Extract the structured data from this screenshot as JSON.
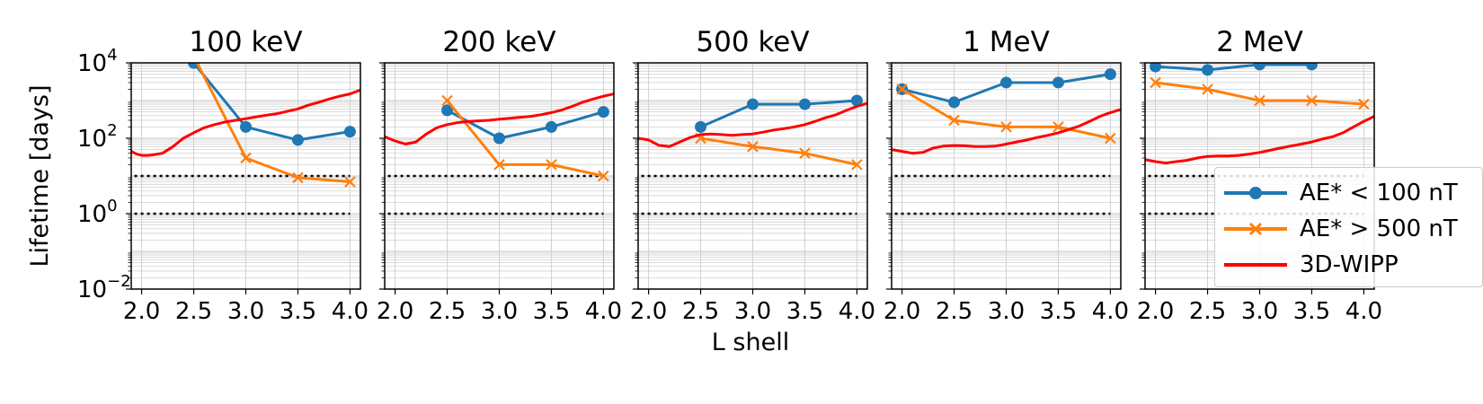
{
  "chart_data": {
    "type": "line",
    "shared_xlabel": "L shell",
    "shared_ylabel": "Lifetime [days]",
    "x_ticks": [
      "2.0",
      "2.5",
      "3.0",
      "3.5",
      "4.0"
    ],
    "xlim": [
      1.9,
      4.1
    ],
    "y_scale": "log",
    "ylim": [
      0.01,
      10000
    ],
    "y_ticks": [
      {
        "value": 0.01,
        "base": "10",
        "exp": "−2"
      },
      {
        "value": 1,
        "base": "10",
        "exp": "0"
      },
      {
        "value": 100,
        "base": "10",
        "exp": "2"
      },
      {
        "value": 10000,
        "base": "10",
        "exp": "4"
      }
    ],
    "grid": true,
    "reference_lines": [
      1,
      10
    ],
    "legend_position": "right, overlapping last panel",
    "series_styles": [
      {
        "name": "AE* < 100 nT",
        "color": "#1f77b4",
        "marker": "circle"
      },
      {
        "name": "AE* > 500 nT",
        "color": "#ff7f0e",
        "marker": "x"
      },
      {
        "name": "3D-WIPP",
        "color": "#ff0000",
        "marker": "none"
      }
    ],
    "panels": [
      {
        "title": "100 keV",
        "series": [
          {
            "name": "AE* < 100 nT",
            "x": [
              2.5,
              3.0,
              3.5,
              4.0
            ],
            "y": [
              10000,
              200,
              90,
              150
            ]
          },
          {
            "name": "AE* > 500 nT",
            "x": [
              2.5,
              3.0,
              3.5,
              4.0
            ],
            "y": [
              15000,
              30,
              9,
              7
            ]
          },
          {
            "name": "3D-WIPP",
            "x": [
              1.9,
              1.95,
              2.0,
              2.05,
              2.1,
              2.2,
              2.3,
              2.4,
              2.5,
              2.6,
              2.7,
              2.8,
              2.9,
              3.0,
              3.1,
              3.2,
              3.3,
              3.4,
              3.5,
              3.6,
              3.7,
              3.8,
              3.9,
              4.0,
              4.1
            ],
            "y": [
              45,
              38,
              35,
              35,
              36,
              40,
              60,
              100,
              140,
              190,
              230,
              270,
              300,
              330,
              370,
              410,
              450,
              520,
              600,
              750,
              900,
              1100,
              1300,
              1500,
              1900
            ]
          }
        ]
      },
      {
        "title": "200 keV",
        "series": [
          {
            "name": "AE* < 100 nT",
            "x": [
              2.5,
              3.0,
              3.5,
              4.0
            ],
            "y": [
              550,
              100,
              200,
              500
            ]
          },
          {
            "name": "AE* > 500 nT",
            "x": [
              2.5,
              3.0,
              3.5,
              4.0
            ],
            "y": [
              1000,
              20,
              20,
              10
            ]
          },
          {
            "name": "3D-WIPP",
            "x": [
              1.9,
              2.0,
              2.1,
              2.2,
              2.3,
              2.4,
              2.5,
              2.6,
              2.7,
              2.8,
              2.9,
              3.0,
              3.1,
              3.2,
              3.3,
              3.4,
              3.5,
              3.6,
              3.7,
              3.8,
              3.9,
              4.0,
              4.1
            ],
            "y": [
              110,
              85,
              70,
              80,
              130,
              190,
              230,
              260,
              280,
              290,
              300,
              320,
              340,
              360,
              380,
              420,
              480,
              560,
              700,
              900,
              1100,
              1300,
              1500
            ]
          }
        ]
      },
      {
        "title": "500 keV",
        "series": [
          {
            "name": "AE* < 100 nT",
            "x": [
              2.5,
              3.0,
              3.5,
              4.0
            ],
            "y": [
              200,
              800,
              800,
              1000
            ]
          },
          {
            "name": "AE* > 500 nT",
            "x": [
              2.5,
              3.0,
              3.5,
              4.0
            ],
            "y": [
              100,
              60,
              40,
              20
            ]
          },
          {
            "name": "3D-WIPP",
            "x": [
              1.9,
              2.0,
              2.1,
              2.2,
              2.3,
              2.4,
              2.5,
              2.6,
              2.7,
              2.8,
              2.9,
              3.0,
              3.1,
              3.2,
              3.3,
              3.4,
              3.5,
              3.6,
              3.7,
              3.8,
              3.9,
              4.0,
              4.1
            ],
            "y": [
              100,
              90,
              65,
              60,
              80,
              105,
              125,
              130,
              125,
              120,
              125,
              130,
              145,
              165,
              180,
              200,
              230,
              280,
              350,
              420,
              550,
              700,
              850
            ]
          }
        ]
      },
      {
        "title": "1 MeV",
        "series": [
          {
            "name": "AE* < 100 nT",
            "x": [
              2.0,
              2.5,
              3.0,
              3.5,
              4.0
            ],
            "y": [
              2000,
              900,
              3000,
              3000,
              5000
            ]
          },
          {
            "name": "AE* > 500 nT",
            "x": [
              2.0,
              2.5,
              3.0,
              3.5,
              4.0
            ],
            "y": [
              2000,
              300,
              200,
              200,
              100
            ]
          },
          {
            "name": "3D-WIPP",
            "x": [
              1.9,
              2.0,
              2.1,
              2.2,
              2.3,
              2.4,
              2.5,
              2.6,
              2.7,
              2.8,
              2.9,
              3.0,
              3.1,
              3.2,
              3.3,
              3.4,
              3.5,
              3.6,
              3.7,
              3.8,
              3.9,
              4.0,
              4.1
            ],
            "y": [
              50,
              45,
              40,
              42,
              55,
              62,
              64,
              63,
              60,
              60,
              62,
              70,
              80,
              90,
              105,
              120,
              140,
              170,
              210,
              280,
              380,
              480,
              580
            ]
          }
        ]
      },
      {
        "title": "2 MeV",
        "series": [
          {
            "name": "AE* < 100 nT",
            "x": [
              2.0,
              2.5,
              3.0,
              3.5
            ],
            "y": [
              8000,
              6500,
              9000,
              9000
            ]
          },
          {
            "name": "AE* > 500 nT",
            "x": [
              2.0,
              2.5,
              3.0,
              3.5,
              4.0
            ],
            "y": [
              3000,
              2000,
              1000,
              1000,
              800
            ]
          },
          {
            "name": "3D-WIPP",
            "x": [
              1.9,
              2.0,
              2.1,
              2.2,
              2.3,
              2.4,
              2.5,
              2.6,
              2.7,
              2.8,
              2.9,
              3.0,
              3.1,
              3.2,
              3.3,
              3.4,
              3.5,
              3.6,
              3.7,
              3.8,
              3.9,
              4.0,
              4.1
            ],
            "y": [
              27,
              24,
              22,
              24,
              26,
              30,
              33,
              34,
              34,
              35,
              38,
              42,
              48,
              55,
              62,
              70,
              80,
              95,
              110,
              140,
              200,
              280,
              380
            ]
          }
        ]
      }
    ]
  }
}
